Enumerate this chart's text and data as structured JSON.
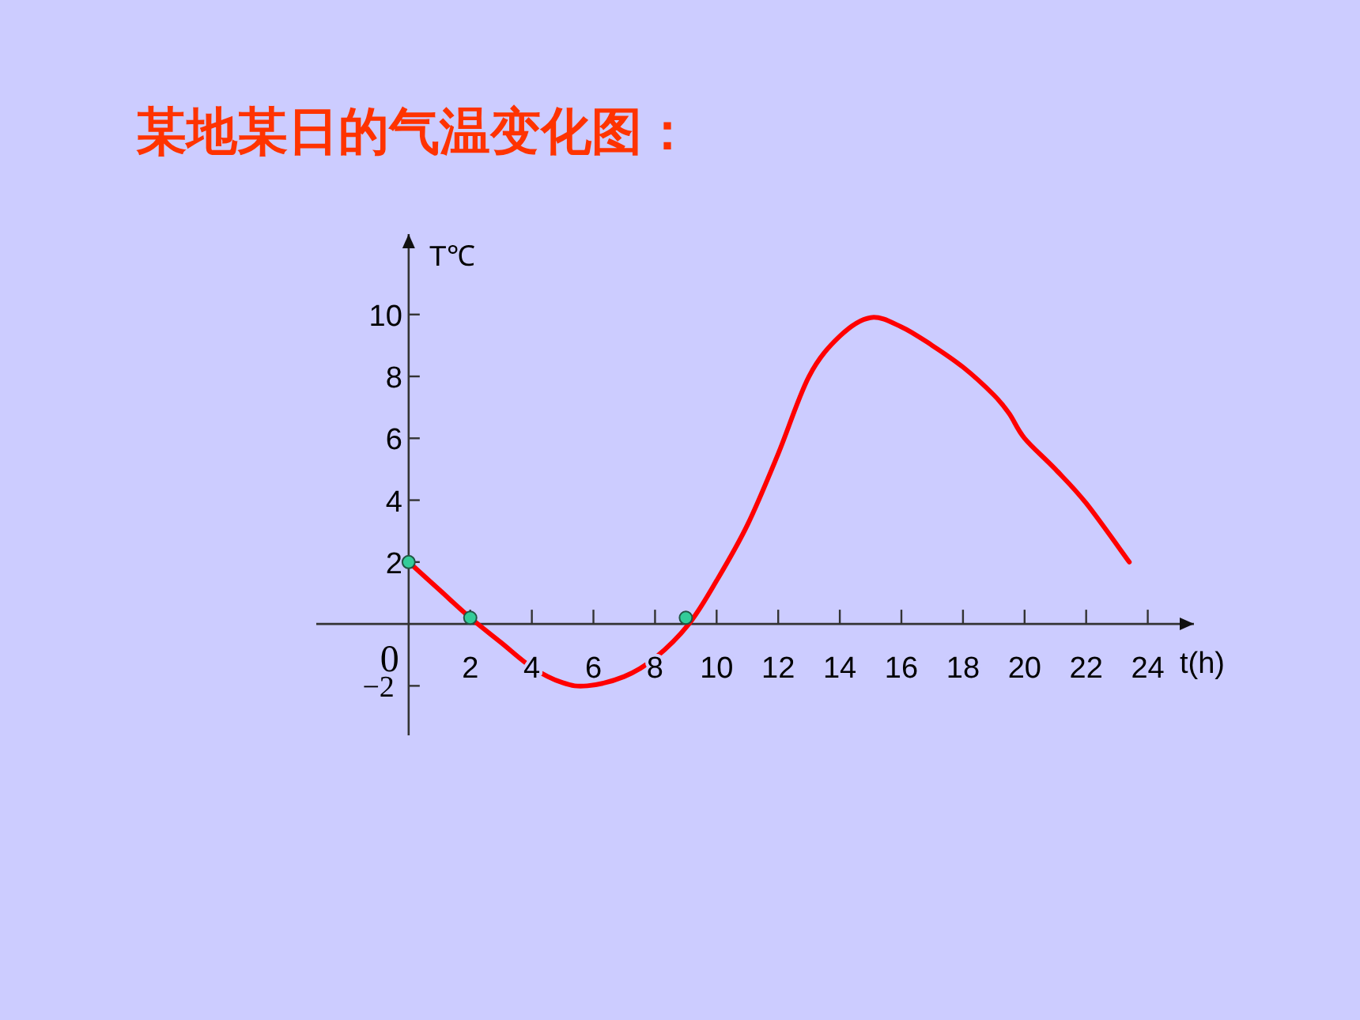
{
  "chart_data": {
    "type": "line",
    "title": "某地某日的气温变化图：",
    "xlabel": "t(h)",
    "ylabel": "T℃",
    "xlim": [
      -3,
      25.5
    ],
    "ylim": [
      -3.6,
      12.6
    ],
    "xticks": [
      0,
      2,
      4,
      6,
      8,
      10,
      12,
      14,
      16,
      18,
      20,
      22,
      24
    ],
    "yticks": [
      {
        "value": -2,
        "label": "−2"
      },
      2,
      4,
      6,
      8,
      10
    ],
    "series": [
      {
        "color": "#ff0000",
        "marker": "none",
        "x": [
          0,
          1,
          2,
          3,
          4,
          5,
          5.8,
          7,
          8,
          9.1,
          10,
          11,
          12,
          13,
          14,
          15,
          16,
          17,
          18,
          19,
          19.5,
          20,
          21,
          22,
          23.4
        ],
        "values": [
          2,
          1.1,
          0.2,
          -0.6,
          -1.4,
          -1.9,
          -2,
          -1.7,
          -1.1,
          0,
          1.4,
          3.2,
          5.5,
          8,
          9.3,
          9.9,
          9.6,
          9,
          8.3,
          7.4,
          6.8,
          6,
          5,
          3.9,
          2
        ]
      },
      {
        "type": "scatter",
        "color": "#33cc99",
        "marker": "circle",
        "x": [
          0,
          2,
          9
        ],
        "values": [
          2,
          0.2,
          0.2
        ]
      }
    ]
  }
}
